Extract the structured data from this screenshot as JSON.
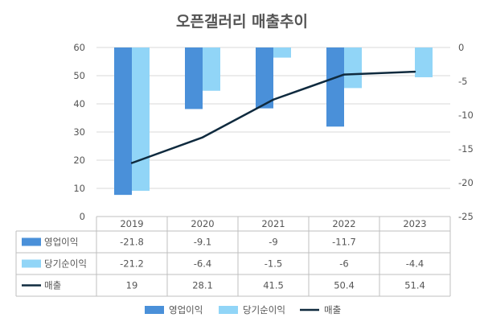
{
  "chart_data": {
    "type": "bar",
    "title": "오픈갤러리 매출추이",
    "categories": [
      "2019",
      "2020",
      "2021",
      "2022",
      "2023"
    ],
    "left_axis": {
      "min": 0,
      "max": 60,
      "ticks": [
        "0",
        "10",
        "20",
        "30",
        "40",
        "50",
        "60"
      ]
    },
    "right_axis": {
      "min": -25,
      "max": 0,
      "ticks": [
        "0",
        "-5",
        "-10",
        "-15",
        "-20",
        "-25"
      ]
    },
    "series": [
      {
        "name": "영업이익",
        "kind": "bar",
        "axis": "right",
        "color": "#4A90D9",
        "values": [
          -21.8,
          -9.1,
          -9,
          -11.7,
          null
        ],
        "labels": [
          "-21.8",
          "-9.1",
          "-9",
          "-11.7",
          ""
        ]
      },
      {
        "name": "당기순이익",
        "kind": "bar",
        "axis": "right",
        "color": "#91D5F7",
        "values": [
          -21.2,
          -6.4,
          -1.5,
          -6,
          -4.4
        ],
        "labels": [
          "-21.2",
          "-6.4",
          "-1.5",
          "-6",
          "-4.4"
        ]
      },
      {
        "name": "매출",
        "kind": "line",
        "axis": "left",
        "color": "#0F2A3E",
        "values": [
          19,
          28.1,
          41.5,
          50.4,
          51.4
        ],
        "labels": [
          "19",
          "28.1",
          "41.5",
          "50.4",
          "51.4"
        ]
      }
    ],
    "legend_position": "bottom",
    "data_table": true
  }
}
